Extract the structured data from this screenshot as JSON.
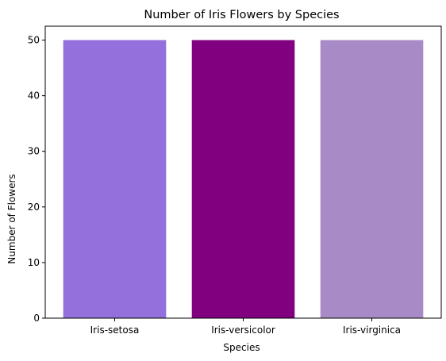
{
  "chart_data": {
    "type": "bar",
    "title": "Number of Iris Flowers by Species",
    "xlabel": "Species",
    "ylabel": "Number of Flowers",
    "categories": [
      "Iris-setosa",
      "Iris-versicolor",
      "Iris-virginica"
    ],
    "values": [
      50,
      50,
      50
    ],
    "colors": [
      "#9370DB",
      "#800080",
      "#A88BC6"
    ],
    "ylim": [
      0,
      52.5
    ],
    "yticks": [
      0,
      10,
      20,
      30,
      40,
      50
    ],
    "grid": false,
    "legend": "none"
  }
}
